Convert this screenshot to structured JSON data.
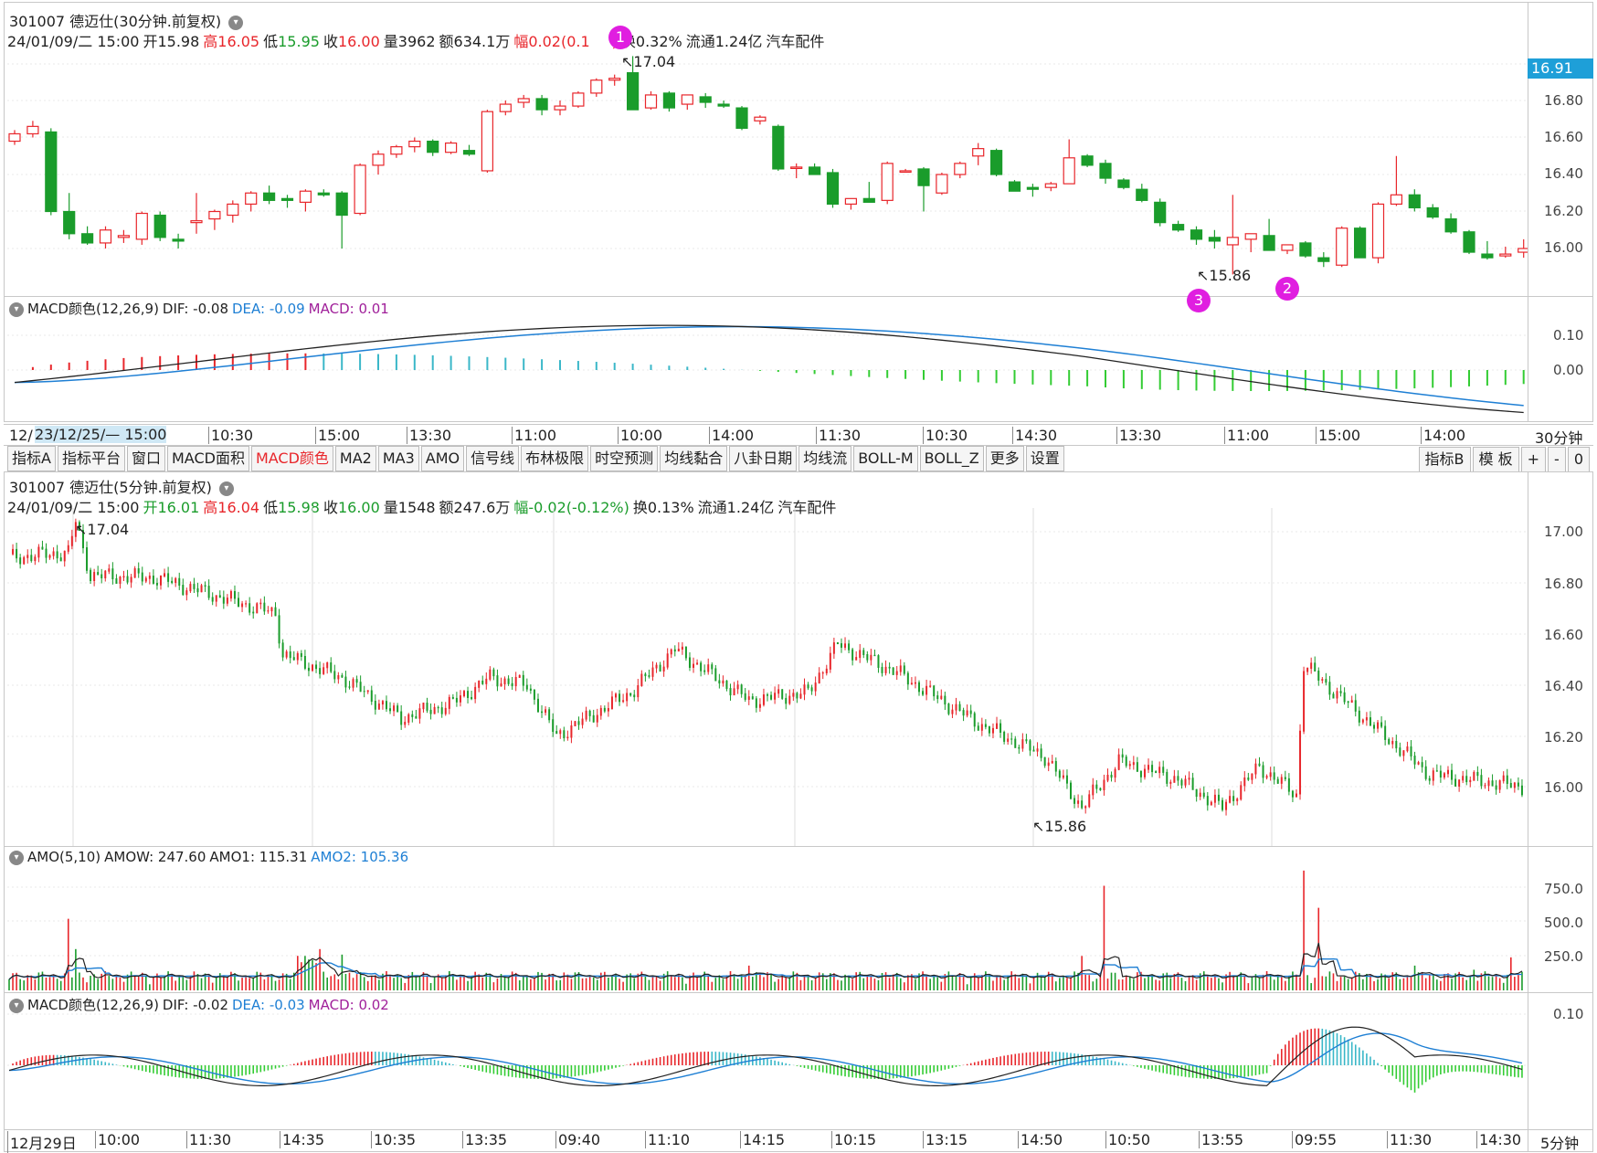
{
  "top": {
    "title": "301007 德迈仕(30分钟.前复权)",
    "info": {
      "date": "24/01/09/二 15:00",
      "open_label": "开",
      "open": "15.98",
      "high_label": "高",
      "high": "16.05",
      "low_label": "低",
      "low": "15.95",
      "close_label": "收",
      "close": "16.00",
      "vol_label": "量",
      "vol": "3962",
      "amt_label": "额",
      "amt": "634.1万",
      "chg_label": "幅",
      "chg": "0.02(0.1",
      "chg_tail": ")",
      "turn": "换0.32%",
      "float": "流通1.24亿",
      "industry": "汽车配件"
    },
    "current_price": "16.91",
    "high_mark": "17.04",
    "low_mark": "15.86",
    "y_ticks": [
      "16.80",
      "16.60",
      "16.40",
      "16.20",
      "16.00"
    ],
    "badges": [
      "1",
      "2",
      "3"
    ]
  },
  "macd_top": {
    "title": "MACD颜色(12,26,9)",
    "dif": "DIF: -0.08",
    "dea": "DEA: -0.09",
    "macd": "MACD: 0.01",
    "y_ticks": [
      "0.10",
      "0.00"
    ]
  },
  "top_time_axis": {
    "first_prefix": "12/",
    "first": "23/12/25/— 15:00",
    "labels": [
      "10:30",
      "15:00",
      "13:30",
      "11:00",
      "10:00",
      "14:00",
      "11:30",
      "10:30",
      "14:30",
      "13:30",
      "11:00",
      "15:00",
      "14:00"
    ],
    "timeframe": "30分钟"
  },
  "toolbar": {
    "items": [
      "指标A",
      "指标平台",
      "窗口",
      "MACD面积",
      "MACD颜色",
      "MA2",
      "MA3",
      "AMO",
      "信号线",
      "布林极限",
      "时空预测",
      "均线黏合",
      "八卦日期",
      "均线流",
      "BOLL-M",
      "BOLL_Z",
      "更多",
      "设置"
    ],
    "active": "MACD颜色",
    "right_items": [
      "指标B",
      "模 板",
      "+",
      "-",
      "0"
    ]
  },
  "mid": {
    "title": "301007 德迈仕(5分钟.前复权)",
    "info": {
      "date": "24/01/09/二 15:00",
      "open_label": "开",
      "open": "16.01",
      "high_label": "高",
      "high": "16.04",
      "low_label": "低",
      "low": "15.98",
      "close_label": "收",
      "close": "16.00",
      "vol_label": "量",
      "vol": "1548",
      "amt_label": "额",
      "amt": "247.6万",
      "chg_label": "幅",
      "chg": "-0.02(-0.12%)",
      "turn": "换0.13%",
      "float": "流通1.24亿",
      "industry": "汽车配件"
    },
    "high_mark": "17.04",
    "low_mark": "15.86",
    "y_ticks": [
      "17.00",
      "16.80",
      "16.60",
      "16.40",
      "16.20",
      "16.00"
    ]
  },
  "amo": {
    "title": "AMO(5,10)",
    "amow": "AMOW: 247.60",
    "amo1": "AMO1: 115.31",
    "amo2": "AMO2: 105.36",
    "y_ticks": [
      "750.0",
      "500.0",
      "250.0"
    ]
  },
  "macd_bottom": {
    "title": "MACD颜色(12,26,9)",
    "dif": "DIF: -0.02",
    "dea": "DEA: -0.03",
    "macd": "MACD: 0.02",
    "y_ticks": [
      "0.10"
    ]
  },
  "bottom_time_axis": {
    "labels": [
      "12月29日",
      "10:00",
      "11:30",
      "14:35",
      "10:35",
      "13:35",
      "09:40",
      "11:10",
      "14:15",
      "10:15",
      "13:15",
      "14:50",
      "10:50",
      "13:55",
      "09:55",
      "11:30",
      "14:30"
    ],
    "timeframe": "5分钟"
  },
  "colors": {
    "up": "#e8262b",
    "down": "#1a9c2b",
    "dif": "#222222",
    "dea": "#1e7fd4",
    "macd_pos_up": "#e8262b",
    "macd_pos_down": "#3ab7c8",
    "macd_neg": "#33cc33",
    "accent": "#1e9fd8"
  },
  "chart_data": [
    {
      "type": "candlestick",
      "title": "301007 德迈仕(30分钟.前复权)",
      "ylim": [
        15.75,
        17.05
      ],
      "ohlc": [
        [
          16.58,
          16.64,
          16.56,
          16.62
        ],
        [
          16.62,
          16.69,
          16.6,
          16.66
        ],
        [
          16.63,
          16.65,
          16.18,
          16.2
        ],
        [
          16.2,
          16.3,
          16.05,
          16.08
        ],
        [
          16.08,
          16.12,
          16.02,
          16.03
        ],
        [
          16.03,
          16.12,
          16.0,
          16.1
        ],
        [
          16.06,
          16.1,
          16.03,
          16.07
        ],
        [
          16.05,
          16.2,
          16.02,
          16.19
        ],
        [
          16.18,
          16.2,
          16.04,
          16.06
        ],
        [
          16.05,
          16.08,
          16.0,
          16.04
        ],
        [
          16.14,
          16.3,
          16.08,
          16.15
        ],
        [
          16.16,
          16.21,
          16.1,
          16.2
        ],
        [
          16.18,
          16.26,
          16.14,
          16.24
        ],
        [
          16.24,
          16.31,
          16.2,
          16.3
        ],
        [
          16.3,
          16.34,
          16.24,
          16.26
        ],
        [
          16.27,
          16.29,
          16.22,
          16.26
        ],
        [
          16.25,
          16.32,
          16.2,
          16.31
        ],
        [
          16.3,
          16.32,
          16.28,
          16.29
        ],
        [
          16.3,
          16.31,
          16.0,
          16.18
        ],
        [
          16.19,
          16.46,
          16.18,
          16.45
        ],
        [
          16.45,
          16.53,
          16.4,
          16.51
        ],
        [
          16.51,
          16.56,
          16.49,
          16.55
        ],
        [
          16.55,
          16.6,
          16.52,
          16.58
        ],
        [
          16.58,
          16.59,
          16.5,
          16.52
        ],
        [
          16.52,
          16.58,
          16.51,
          16.57
        ],
        [
          16.53,
          16.56,
          16.5,
          16.51
        ],
        [
          16.42,
          16.75,
          16.41,
          16.74
        ],
        [
          16.74,
          16.8,
          16.72,
          16.78
        ],
        [
          16.79,
          16.83,
          16.76,
          16.81
        ],
        [
          16.81,
          16.83,
          16.72,
          16.75
        ],
        [
          16.75,
          16.8,
          16.72,
          16.77
        ],
        [
          16.77,
          16.85,
          16.76,
          16.84
        ],
        [
          16.84,
          16.92,
          16.82,
          16.91
        ],
        [
          16.91,
          16.94,
          16.88,
          16.92
        ],
        [
          16.95,
          17.04,
          16.75,
          16.75
        ],
        [
          16.76,
          16.85,
          16.75,
          16.83
        ],
        [
          16.84,
          16.85,
          16.74,
          16.76
        ],
        [
          16.78,
          16.83,
          16.75,
          16.83
        ],
        [
          16.82,
          16.84,
          16.76,
          16.79
        ],
        [
          16.78,
          16.8,
          16.76,
          16.77
        ],
        [
          16.76,
          16.77,
          16.64,
          16.65
        ],
        [
          16.69,
          16.72,
          16.67,
          16.71
        ],
        [
          16.66,
          16.67,
          16.42,
          16.43
        ],
        [
          16.44,
          16.46,
          16.38,
          16.44
        ],
        [
          16.44,
          16.46,
          16.41,
          16.4
        ],
        [
          16.41,
          16.43,
          16.22,
          16.24
        ],
        [
          16.24,
          16.27,
          16.21,
          16.27
        ],
        [
          16.27,
          16.36,
          16.25,
          16.25
        ],
        [
          16.26,
          16.47,
          16.24,
          16.46
        ],
        [
          16.42,
          16.43,
          16.41,
          16.42
        ],
        [
          16.43,
          16.44,
          16.2,
          16.34
        ],
        [
          16.3,
          16.41,
          16.29,
          16.4
        ],
        [
          16.4,
          16.47,
          16.38,
          16.46
        ],
        [
          16.5,
          16.57,
          16.45,
          16.54
        ],
        [
          16.53,
          16.54,
          16.39,
          16.4
        ],
        [
          16.36,
          16.37,
          16.32,
          16.31
        ],
        [
          16.33,
          16.35,
          16.28,
          16.32
        ],
        [
          16.33,
          16.36,
          16.31,
          16.35
        ],
        [
          16.35,
          16.59,
          16.35,
          16.49
        ],
        [
          16.5,
          16.51,
          16.44,
          16.45
        ],
        [
          16.46,
          16.48,
          16.35,
          16.38
        ],
        [
          16.37,
          16.38,
          16.32,
          16.33
        ],
        [
          16.32,
          16.35,
          16.25,
          16.26
        ],
        [
          16.25,
          16.27,
          16.12,
          16.14
        ],
        [
          16.13,
          16.15,
          16.09,
          16.1
        ],
        [
          16.1,
          16.12,
          16.02,
          16.05
        ],
        [
          16.06,
          16.1,
          16.0,
          16.04
        ],
        [
          16.02,
          16.29,
          15.86,
          16.06
        ],
        [
          16.05,
          16.08,
          15.98,
          16.08
        ],
        [
          16.07,
          16.16,
          15.99,
          15.99
        ],
        [
          15.99,
          16.01,
          15.97,
          16.02
        ],
        [
          16.03,
          16.04,
          15.95,
          15.96
        ],
        [
          15.95,
          15.98,
          15.9,
          15.93
        ],
        [
          15.91,
          16.12,
          15.9,
          16.11
        ],
        [
          16.11,
          16.12,
          15.95,
          15.95
        ],
        [
          15.95,
          16.25,
          15.92,
          16.24
        ],
        [
          16.24,
          16.5,
          16.23,
          16.29
        ],
        [
          16.29,
          16.32,
          16.2,
          16.22
        ],
        [
          16.22,
          16.24,
          16.16,
          16.17
        ],
        [
          16.16,
          16.19,
          16.08,
          16.09
        ],
        [
          16.09,
          16.1,
          15.97,
          15.98
        ],
        [
          15.97,
          16.04,
          15.94,
          15.95
        ],
        [
          15.96,
          16.01,
          15.95,
          15.97
        ],
        [
          15.98,
          16.05,
          15.95,
          16.0
        ]
      ]
    },
    {
      "type": "candlestick",
      "title": "301007 德迈仕(5分钟.前复权)",
      "ylim": [
        15.8,
        17.1
      ]
    },
    {
      "type": "bar",
      "title": "AMO(5,10)",
      "series": [
        {
          "name": "AMOW",
          "last": 247.6
        },
        {
          "name": "AMO1",
          "last": 115.31
        },
        {
          "name": "AMO2",
          "last": 105.36
        }
      ]
    },
    {
      "type": "line",
      "title": "MACD颜色(12,26,9)",
      "series": [
        {
          "name": "DIF",
          "last": -0.02
        },
        {
          "name": "DEA",
          "last": -0.03
        },
        {
          "name": "MACD",
          "last": 0.02
        }
      ]
    }
  ]
}
